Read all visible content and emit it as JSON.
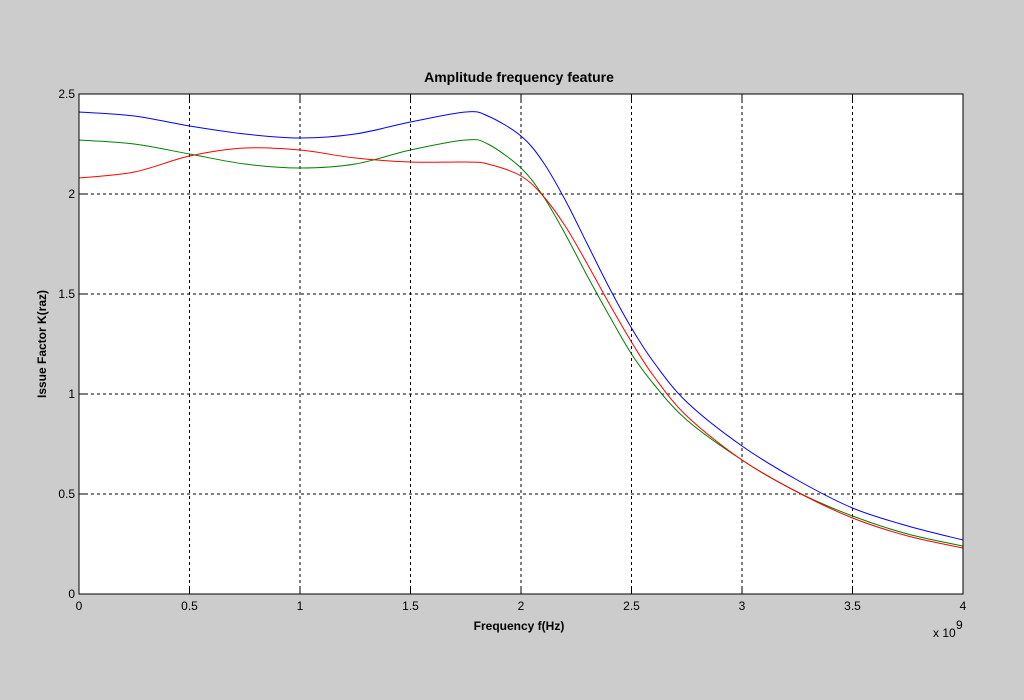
{
  "chart_data": {
    "type": "line",
    "title": "Amplitude frequency feature",
    "xlabel": "Frequency f(Hz)",
    "ylabel": "Issue Factor K(raz)",
    "x_exponent_label": "x 10",
    "x_exponent_power": "9",
    "xlim": [
      0,
      4
    ],
    "ylim": [
      0,
      2.5
    ],
    "xticks": [
      "0",
      "0.5",
      "1",
      "1.5",
      "2",
      "2.5",
      "3",
      "3.5",
      "4"
    ],
    "yticks": [
      "0",
      "0.5",
      "1",
      "1.5",
      "2",
      "2.5"
    ],
    "xtick_values": [
      0,
      0.5,
      1,
      1.5,
      2,
      2.5,
      3,
      3.5,
      4
    ],
    "ytick_values": [
      0,
      0.5,
      1,
      1.5,
      2,
      2.5
    ],
    "grid": true,
    "background": "#cccccc",
    "plot_background": "#ffffff",
    "x": [
      0,
      0.25,
      0.5,
      0.75,
      1.0,
      1.25,
      1.5,
      1.75,
      1.85,
      2.0,
      2.1,
      2.2,
      2.3,
      2.4,
      2.5,
      2.6,
      2.75,
      3.0,
      3.25,
      3.5,
      3.75,
      4.0
    ],
    "series": [
      {
        "color": "#0000ff",
        "start_value": 0,
        "values": [
          2.41,
          2.39,
          2.34,
          2.3,
          2.28,
          2.3,
          2.36,
          2.41,
          2.39,
          2.29,
          2.16,
          1.97,
          1.75,
          1.53,
          1.33,
          1.16,
          0.96,
          0.74,
          0.57,
          0.43,
          0.34,
          0.27
        ]
      },
      {
        "color": "#008000",
        "start_value": 0,
        "values": [
          2.27,
          2.25,
          2.2,
          2.15,
          2.13,
          2.15,
          2.22,
          2.27,
          2.25,
          2.13,
          1.99,
          1.8,
          1.59,
          1.39,
          1.2,
          1.05,
          0.87,
          0.67,
          0.51,
          0.39,
          0.3,
          0.24
        ]
      },
      {
        "color": "#ff0000",
        "start_value": 0,
        "values": [
          2.08,
          2.11,
          2.19,
          2.23,
          2.22,
          2.18,
          2.16,
          2.16,
          2.15,
          2.09,
          1.99,
          1.84,
          1.65,
          1.45,
          1.26,
          1.09,
          0.89,
          0.67,
          0.51,
          0.38,
          0.29,
          0.23
        ]
      }
    ]
  }
}
